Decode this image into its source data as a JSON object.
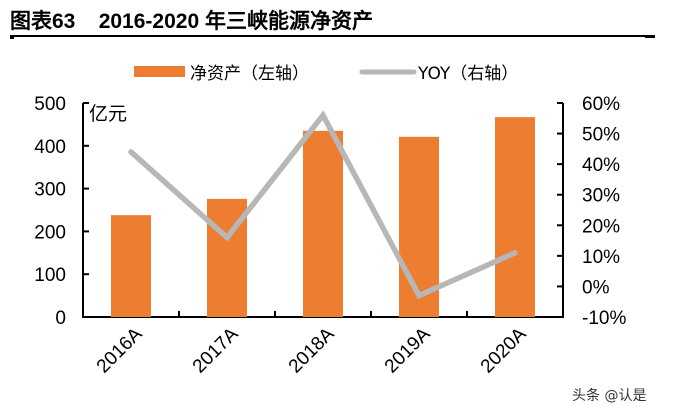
{
  "header": {
    "title": "图表63    2016-2020 年三峡能源净资产"
  },
  "legend": {
    "items": [
      {
        "label": "净资产（左轴）",
        "color": "#ED7D31",
        "kind": "bar"
      },
      {
        "label": "YOY（右轴）",
        "color": "#B7B7B7",
        "kind": "line"
      }
    ]
  },
  "axes": {
    "left_unit": "亿元",
    "left_ticks": [
      "500",
      "400",
      "300",
      "200",
      "100",
      "0"
    ],
    "right_ticks": [
      "60%",
      "50%",
      "40%",
      "30%",
      "20%",
      "10%",
      "0%",
      "-10%"
    ]
  },
  "watermark": "头条 @认是",
  "colors": {
    "bar": "#ED7D31",
    "line": "#B7B7B7",
    "axis": "#000000"
  },
  "chart_data": {
    "type": "bar+line",
    "title": "2016-2020 年三峡能源净资产",
    "categories": [
      "2016A",
      "2017A",
      "2018A",
      "2019A",
      "2020A"
    ],
    "series": [
      {
        "name": "净资产（左轴）",
        "type": "bar",
        "axis": "left",
        "unit": "亿元",
        "values": [
          238,
          276,
          435,
          421,
          467
        ]
      },
      {
        "name": "YOY（右轴）",
        "type": "line",
        "axis": "right",
        "unit": "%",
        "values": [
          44,
          16,
          56,
          -3,
          11
        ]
      }
    ],
    "xlabel": "",
    "ylabel": "亿元",
    "ylim": [
      0,
      500
    ],
    "y2lim": [
      -10,
      60
    ],
    "grid": false,
    "legend_position": "top"
  }
}
